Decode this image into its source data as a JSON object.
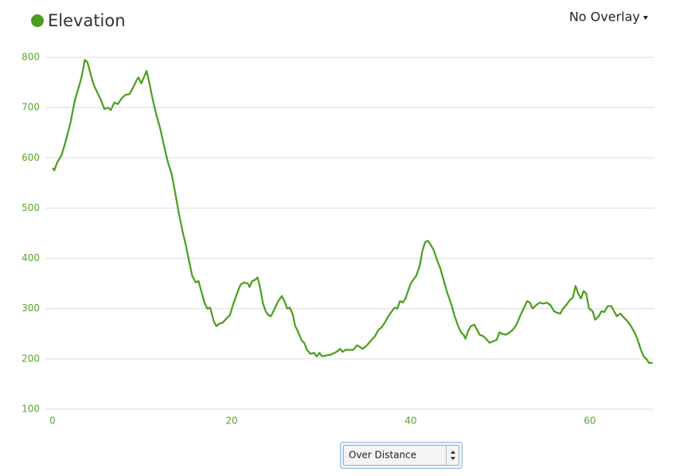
{
  "header": {
    "title": "Elevation",
    "overlay": "No Overlay"
  },
  "chart_data": {
    "type": "line",
    "color": "#4a9e1e",
    "x": [
      0,
      0.2,
      0.5,
      1,
      1.5,
      2,
      2.5,
      3,
      3.3,
      3.6,
      3.9,
      4.2,
      4.6,
      5,
      5.4,
      5.8,
      6.2,
      6.5,
      6.9,
      7.3,
      7.7,
      8.1,
      8.6,
      9,
      9.4,
      9.6,
      9.9,
      10.2,
      10.5,
      10.8,
      11.2,
      11.6,
      12,
      12.5,
      12.9,
      13.3,
      13.7,
      14.1,
      14.5,
      14.9,
      15.3,
      15.6,
      16,
      16.3,
      16.6,
      17,
      17.3,
      17.6,
      18,
      18.3,
      18.6,
      19,
      19.4,
      19.8,
      20.2,
      20.6,
      21,
      21.4,
      21.8,
      22,
      22.3,
      22.6,
      22.9,
      23.2,
      23.5,
      23.8,
      24.1,
      24.4,
      24.8,
      25.2,
      25.6,
      25.9,
      26.2,
      26.5,
      26.8,
      27.1,
      27.4,
      27.8,
      28.1,
      28.4,
      28.8,
      29.2,
      29.5,
      29.8,
      30.1,
      30.6,
      31,
      31.5,
      31.8,
      32.1,
      32.4,
      32.7,
      33.1,
      33.6,
      34,
      34.3,
      34.6,
      35,
      35.5,
      36,
      36.4,
      36.7,
      37.1,
      37.5,
      37.9,
      38.2,
      38.5,
      38.8,
      39.1,
      39.4,
      39.7,
      40,
      40.3,
      40.6,
      41,
      41.3,
      41.6,
      41.9,
      42.2,
      42.6,
      42.9,
      43.3,
      43.7,
      44.1,
      44.5,
      44.9,
      45.3,
      45.6,
      45.9,
      46.1,
      46.4,
      46.7,
      47.1,
      47.4,
      47.7,
      48.1,
      48.4,
      48.8,
      49.2,
      49.6,
      49.9,
      50.2,
      50.6,
      51,
      51.4,
      51.8,
      52.2,
      52.6,
      53,
      53.3,
      53.6,
      54,
      54.4,
      54.8,
      55.2,
      55.6,
      56,
      56.3,
      56.7,
      57,
      57.4,
      57.8,
      58.1,
      58.4,
      58.7,
      59,
      59.3,
      59.6,
      59.9,
      60.3,
      60.6,
      61,
      61.3,
      61.6,
      62,
      62.4,
      62.7,
      63,
      63.4,
      63.8,
      64.2,
      64.6,
      65,
      65.3,
      65.7,
      66,
      66.3,
      66.6,
      67
    ],
    "values": [
      580,
      575,
      590,
      605,
      635,
      670,
      715,
      745,
      765,
      795,
      790,
      770,
      745,
      730,
      715,
      697,
      700,
      695,
      710,
      707,
      718,
      725,
      727,
      740,
      755,
      760,
      748,
      760,
      773,
      750,
      715,
      685,
      660,
      620,
      590,
      568,
      530,
      490,
      455,
      425,
      390,
      365,
      352,
      355,
      335,
      310,
      300,
      302,
      275,
      265,
      270,
      272,
      280,
      287,
      310,
      330,
      348,
      352,
      350,
      343,
      355,
      357,
      362,
      340,
      310,
      295,
      287,
      285,
      300,
      315,
      325,
      315,
      300,
      302,
      290,
      265,
      255,
      237,
      232,
      218,
      210,
      212,
      205,
      212,
      205,
      207,
      208,
      212,
      215,
      220,
      214,
      218,
      218,
      218,
      227,
      224,
      220,
      225,
      235,
      245,
      258,
      262,
      272,
      285,
      295,
      302,
      300,
      315,
      312,
      320,
      335,
      350,
      358,
      365,
      385,
      415,
      432,
      435,
      428,
      415,
      398,
      380,
      355,
      330,
      310,
      285,
      265,
      253,
      248,
      240,
      255,
      265,
      268,
      258,
      248,
      245,
      240,
      232,
      235,
      238,
      253,
      250,
      248,
      252,
      258,
      268,
      285,
      300,
      315,
      312,
      300,
      307,
      312,
      310,
      312,
      307,
      295,
      292,
      290,
      300,
      308,
      318,
      322,
      345,
      330,
      320,
      335,
      330,
      300,
      295,
      278,
      285,
      295,
      293,
      305,
      305,
      295,
      285,
      290,
      282,
      275,
      265,
      252,
      240,
      218,
      205,
      200,
      192,
      192
    ],
    "xlim": [
      -0.8,
      67.2
    ],
    "ylim": [
      100,
      800
    ],
    "xticks": [
      0,
      20,
      40,
      60
    ],
    "yticks": [
      100,
      200,
      300,
      400,
      500,
      600,
      700,
      800
    ],
    "grid": true
  },
  "control": {
    "label": "Over Distance"
  }
}
